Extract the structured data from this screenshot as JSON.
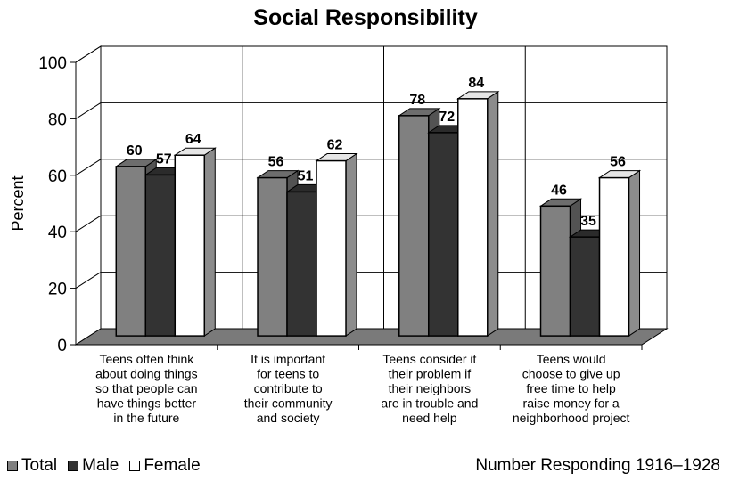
{
  "chart_data": {
    "type": "bar",
    "title": "Social Responsibility",
    "ylabel": "Percent",
    "xlabel": "",
    "ylim": [
      0,
      100
    ],
    "yticks": [
      0,
      20,
      40,
      60,
      80,
      100
    ],
    "grid": true,
    "legend_position": "bottom-left",
    "categories": [
      [
        "Teens often think",
        "about doing things",
        "so that people can",
        "have things better",
        "in the future"
      ],
      [
        "It is important",
        "for teens to",
        "contribute to",
        "their community",
        "and society"
      ],
      [
        "Teens consider it",
        "their problem if",
        "their neighbors",
        "are in trouble and",
        "need help"
      ],
      [
        "Teens would",
        "choose to give up",
        "free time to help",
        "raise money for a",
        "neighborhood project"
      ]
    ],
    "series": [
      {
        "name": "Total",
        "values": [
          60,
          56,
          78,
          46
        ],
        "color": "#808080"
      },
      {
        "name": "Male",
        "values": [
          57,
          51,
          72,
          35
        ],
        "color": "#333333"
      },
      {
        "name": "Female",
        "values": [
          64,
          62,
          84,
          56
        ],
        "color": "#ffffff"
      }
    ],
    "note": "Number Responding 1916–1928"
  }
}
